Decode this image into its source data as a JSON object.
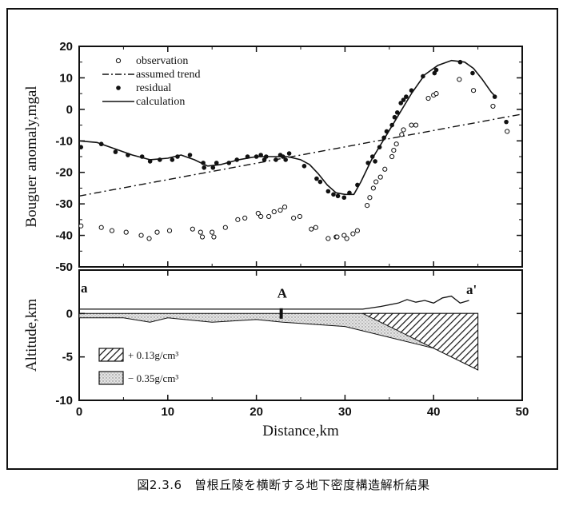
{
  "figure": {
    "caption": "図2.3.6　曽根丘陵を横断する地下密度構造解析結果"
  },
  "chart_data": [
    {
      "type": "scatter",
      "panel": "upper",
      "xlabel": "Distance,km",
      "ylabel": "Bouguer anomaly,mgal",
      "xlim": [
        0,
        50
      ],
      "ylim": [
        -50,
        20
      ],
      "xticks": [
        "0",
        "10",
        "20",
        "30",
        "40",
        "50"
      ],
      "yticks": [
        "20",
        "10",
        "0",
        "-10",
        "-20",
        "-30",
        "-40",
        "-50"
      ],
      "legend": {
        "placement": "top-left",
        "items": [
          {
            "label": "observation",
            "marker": "open-circle"
          },
          {
            "label": "assumed trend",
            "marker": "dash-dot-line"
          },
          {
            "label": "residual",
            "marker": "filled-circle"
          },
          {
            "label": "calculation",
            "marker": "solid-line"
          }
        ]
      },
      "series": [
        {
          "name": "observation",
          "style": "open-circle",
          "points": [
            [
              0.2,
              -37
            ],
            [
              2.5,
              -37.5
            ],
            [
              3.7,
              -38.5
            ],
            [
              5.3,
              -39
            ],
            [
              7,
              -40
            ],
            [
              7.9,
              -41
            ],
            [
              8.8,
              -39
            ],
            [
              10.2,
              -38.5
            ],
            [
              12.8,
              -38
            ],
            [
              13.7,
              -39
            ],
            [
              13.9,
              -40.5
            ],
            [
              15,
              -39
            ],
            [
              15.2,
              -40.5
            ],
            [
              16.5,
              -37.5
            ],
            [
              17.9,
              -35
            ],
            [
              18.7,
              -34.5
            ],
            [
              20.2,
              -33
            ],
            [
              20.5,
              -34
            ],
            [
              21.4,
              -34
            ],
            [
              22,
              -32.5
            ],
            [
              22.7,
              -32
            ],
            [
              23.2,
              -31
            ],
            [
              24.2,
              -34.5
            ],
            [
              24.9,
              -34
            ],
            [
              26.2,
              -38
            ],
            [
              26.7,
              -37.5
            ],
            [
              28.1,
              -41
            ],
            [
              29,
              -40.5
            ],
            [
              29.1,
              -40.5
            ],
            [
              29.9,
              -40
            ],
            [
              30.2,
              -41
            ],
            [
              30.9,
              -39.5
            ],
            [
              31.4,
              -38.5
            ],
            [
              32.5,
              -30.5
            ],
            [
              32.8,
              -28
            ],
            [
              33.2,
              -25
            ],
            [
              33.5,
              -23
            ],
            [
              34,
              -21.5
            ],
            [
              34.5,
              -19
            ],
            [
              35.3,
              -15
            ],
            [
              35.5,
              -13
            ],
            [
              35.8,
              -11
            ],
            [
              36.4,
              -8
            ],
            [
              36.6,
              -6.5
            ],
            [
              37.5,
              -5
            ],
            [
              38,
              -5
            ],
            [
              39.4,
              3.5
            ],
            [
              40,
              4.5
            ],
            [
              40.3,
              5
            ],
            [
              42.9,
              9.5
            ],
            [
              44.5,
              6
            ],
            [
              46.7,
              1
            ],
            [
              48.3,
              -7
            ]
          ]
        },
        {
          "name": "residual",
          "style": "filled-circle",
          "points": [
            [
              0.2,
              -12
            ],
            [
              2.5,
              -11
            ],
            [
              4.1,
              -13.5
            ],
            [
              5.5,
              -14.5
            ],
            [
              7.1,
              -15
            ],
            [
              8,
              -16.5
            ],
            [
              9.1,
              -16
            ],
            [
              10.5,
              -16
            ],
            [
              11.1,
              -15
            ],
            [
              12.5,
              -14.5
            ],
            [
              14,
              -17
            ],
            [
              14.1,
              -18.5
            ],
            [
              15.1,
              -18.5
            ],
            [
              15.5,
              -17
            ],
            [
              16.9,
              -17
            ],
            [
              17.8,
              -16
            ],
            [
              19,
              -15
            ],
            [
              20,
              -15
            ],
            [
              20.5,
              -14.5
            ],
            [
              20.9,
              -16
            ],
            [
              21.1,
              -15
            ],
            [
              22.2,
              -16
            ],
            [
              22.7,
              -14.5
            ],
            [
              23,
              -15
            ],
            [
              23.3,
              -16
            ],
            [
              23.7,
              -14
            ],
            [
              25.4,
              -18
            ],
            [
              26.8,
              -22
            ],
            [
              27.2,
              -23
            ],
            [
              28.1,
              -26
            ],
            [
              28.7,
              -27
            ],
            [
              29.2,
              -27.5
            ],
            [
              29.9,
              -28
            ],
            [
              30.5,
              -26.5
            ],
            [
              31.4,
              -24
            ],
            [
              32.6,
              -17
            ],
            [
              33.1,
              -15
            ],
            [
              33.4,
              -16.5
            ],
            [
              33.9,
              -12
            ],
            [
              34.4,
              -9
            ],
            [
              34.7,
              -7
            ],
            [
              35.3,
              -5
            ],
            [
              35.6,
              -2.5
            ],
            [
              35.9,
              -1
            ],
            [
              36.3,
              2
            ],
            [
              36.6,
              3
            ],
            [
              36.9,
              4
            ],
            [
              37.5,
              6
            ],
            [
              38.8,
              10.5
            ],
            [
              40.1,
              11.5
            ],
            [
              40.3,
              12.5
            ],
            [
              43,
              15
            ],
            [
              44.4,
              11.5
            ],
            [
              46.9,
              4
            ],
            [
              48.2,
              -4
            ]
          ]
        },
        {
          "name": "assumed trend",
          "style": "dash-dot-line",
          "points": [
            [
              0,
              -27.5
            ],
            [
              50,
              -1.5
            ]
          ]
        },
        {
          "name": "calculation",
          "style": "solid-line",
          "points": [
            [
              0,
              -10
            ],
            [
              2,
              -10.5
            ],
            [
              4,
              -12.5
            ],
            [
              6,
              -14.5
            ],
            [
              8,
              -16
            ],
            [
              10,
              -15.5
            ],
            [
              11.5,
              -14.5
            ],
            [
              13,
              -16
            ],
            [
              14.5,
              -18
            ],
            [
              16,
              -17.5
            ],
            [
              18,
              -16
            ],
            [
              20,
              -15
            ],
            [
              22,
              -15
            ],
            [
              23.5,
              -15
            ],
            [
              25,
              -16
            ],
            [
              26,
              -17.5
            ],
            [
              27,
              -20.5
            ],
            [
              28,
              -24
            ],
            [
              29,
              -26.5
            ],
            [
              30,
              -27
            ],
            [
              31,
              -27
            ],
            [
              31.8,
              -23
            ],
            [
              33,
              -16
            ],
            [
              34.5,
              -9
            ],
            [
              36,
              -2
            ],
            [
              37.5,
              5
            ],
            [
              39,
              11
            ],
            [
              40.5,
              14
            ],
            [
              42,
              15.5
            ],
            [
              43.5,
              15
            ],
            [
              44.5,
              13
            ],
            [
              45.5,
              9.5
            ],
            [
              46.5,
              5.5
            ],
            [
              47,
              4
            ]
          ]
        }
      ]
    },
    {
      "type": "area",
      "panel": "lower",
      "xlabel": "Distance,km",
      "ylabel": "Altitude,km",
      "xlim": [
        0,
        50
      ],
      "ylim": [
        -10,
        5
      ],
      "xticks": [
        "0",
        "10",
        "20",
        "30",
        "40",
        "50"
      ],
      "yticks": [
        "0",
        "-5",
        "-10"
      ],
      "annotations": [
        {
          "text": "a",
          "x": 0,
          "y": 5
        },
        {
          "text": "A",
          "x": 22.8,
          "y": 2
        },
        {
          "text": "a'",
          "x": 43.5,
          "y": 4
        }
      ],
      "legend": {
        "placement": "bottom-left",
        "items": [
          {
            "label": "+ 0.13g/cm³",
            "pattern": "hatched"
          },
          {
            "label": "− 0.35g/cm³",
            "pattern": "stippled"
          }
        ]
      },
      "bodies": [
        {
          "name": "+ 0.13g/cm³",
          "pattern": "hatched",
          "polygon": [
            [
              32,
              0
            ],
            [
              45,
              0
            ],
            [
              45,
              -6.5
            ],
            [
              40,
              -4
            ],
            [
              35,
              -1.5
            ]
          ]
        },
        {
          "name": "− 0.35g/cm³",
          "pattern": "stippled",
          "polygon": [
            [
              0,
              0
            ],
            [
              45,
              0
            ],
            [
              45,
              -6.5
            ],
            [
              40,
              -4
            ],
            [
              30,
              -1.5
            ],
            [
              23,
              -1
            ],
            [
              20,
              -0.7
            ],
            [
              15,
              -1
            ],
            [
              10,
              -0.5
            ],
            [
              8,
              -1
            ],
            [
              5,
              -0.5
            ],
            [
              0,
              -0.5
            ]
          ]
        }
      ],
      "topography": [
        [
          0,
          0.5
        ],
        [
          10,
          0.5
        ],
        [
          20,
          0.5
        ],
        [
          30,
          0.5
        ],
        [
          32,
          0.5
        ],
        [
          34,
          0.8
        ],
        [
          36,
          1.2
        ],
        [
          37,
          1.6
        ],
        [
          38,
          1.3
        ],
        [
          39,
          1.5
        ],
        [
          40,
          1.2
        ],
        [
          41,
          1.8
        ],
        [
          42,
          2.0
        ],
        [
          43,
          1.2
        ],
        [
          44,
          1.5
        ]
      ],
      "station_A": [
        22.8,
        0
      ]
    }
  ]
}
